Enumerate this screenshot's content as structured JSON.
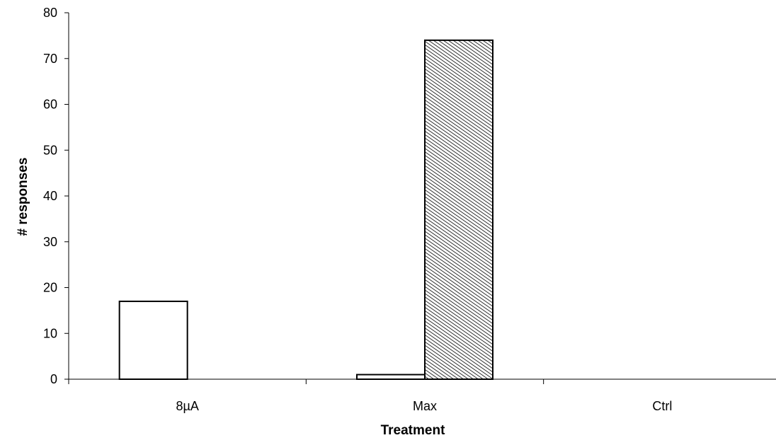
{
  "chart_data": {
    "type": "bar",
    "title": "",
    "xlabel": "Treatment",
    "ylabel": "# responses",
    "categories": [
      "8µA",
      "Max",
      "Ctrl"
    ],
    "series": [
      {
        "fill": "none",
        "values": [
          17,
          1,
          0
        ]
      },
      {
        "fill": "hatched",
        "values": [
          0,
          74,
          0
        ]
      }
    ],
    "ylim": [
      0,
      80
    ],
    "yticks": [
      0,
      10,
      20,
      30,
      40,
      50,
      60,
      70,
      80
    ],
    "grid": false,
    "legend": "none",
    "colors": {
      "axis": "#000000",
      "bar_outline": "#000000",
      "bar_fill": "#ffffff",
      "hatch": "#000000"
    }
  }
}
